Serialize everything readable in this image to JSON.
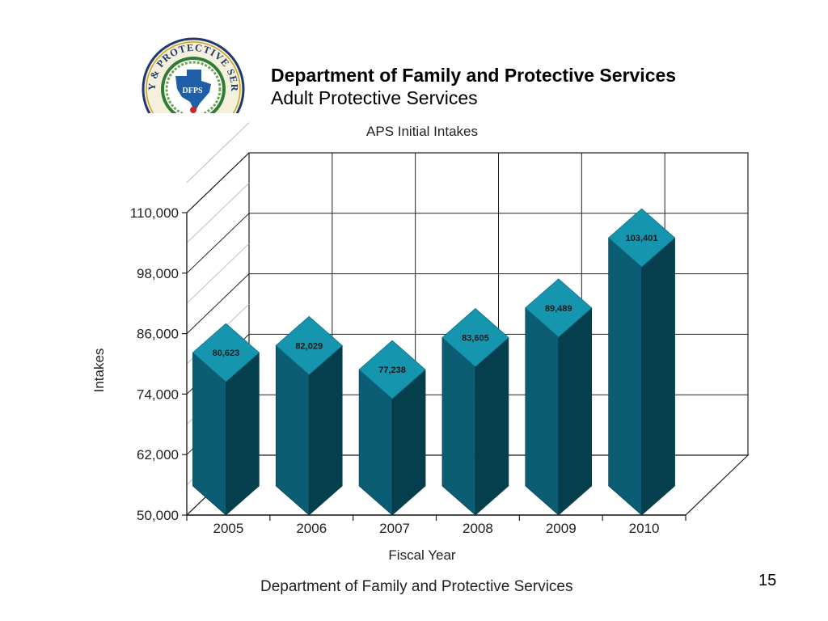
{
  "header": {
    "title": "Department of Family and Protective Services",
    "subtitle": "Adult Protective Services"
  },
  "logo": {
    "text": "FAMILY & PROTECTIVE SERVICES",
    "abbreviation": "DFPS"
  },
  "chart_data": {
    "type": "bar",
    "title": "APS Initial Intakes",
    "xlabel": "Fiscal Year",
    "ylabel": "Intakes",
    "categories": [
      "2005",
      "2006",
      "2007",
      "2008",
      "2009",
      "2010"
    ],
    "values": [
      80623,
      82029,
      77238,
      83605,
      89489,
      103401
    ],
    "data_labels": [
      "80,623",
      "82,029",
      "77,238",
      "83,605",
      "89,489",
      "103,401"
    ],
    "ylim": [
      50000,
      110000
    ],
    "yticks": [
      50000,
      62000,
      74000,
      86000,
      98000,
      110000
    ],
    "ytick_labels": [
      "50,000",
      "62,000",
      "74,000",
      "86,000",
      "98,000",
      "110,000"
    ],
    "grid": true,
    "colors": {
      "bar_front": "#0a5d72",
      "bar_side": "#053f4e",
      "bar_top": "#1696ae"
    }
  },
  "footer": {
    "text": "Department of Family and Protective Services",
    "page_number": "15"
  }
}
